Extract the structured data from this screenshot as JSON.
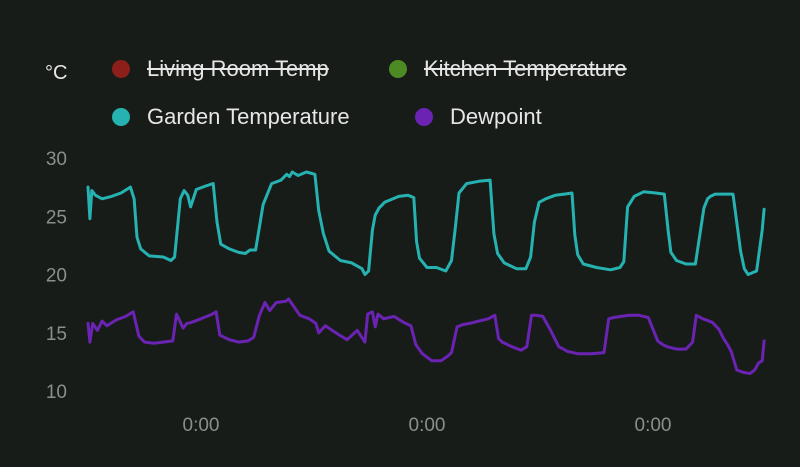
{
  "unit_label": "°C",
  "legend": [
    {
      "name": "Living Room Temp",
      "color": "#8c1f1a",
      "hidden": true
    },
    {
      "name": "Kitchen Temperature",
      "color": "#4c8a23",
      "hidden": true
    },
    {
      "name": "Garden Temperature",
      "color": "#26b2b0",
      "hidden": false
    },
    {
      "name": "Dewpoint",
      "color": "#6a23b2",
      "hidden": false
    }
  ],
  "chart_data": {
    "type": "line",
    "ylabel": "°C",
    "ylim": [
      10,
      30
    ],
    "yticks": [
      10,
      15,
      20,
      25,
      30
    ],
    "xlim": [
      0,
      72
    ],
    "xticks": [
      {
        "x": 12,
        "label": "0:00"
      },
      {
        "x": 36,
        "label": "0:00"
      },
      {
        "x": 60,
        "label": "0:00"
      }
    ],
    "grid": false,
    "series": [
      {
        "name": "Garden Temperature",
        "color": "#26b2b0",
        "x": [
          0,
          0.2,
          0.4,
          0.8,
          1.5,
          2.5,
          3.5,
          4.5,
          4.9,
          5.2,
          5.6,
          6.5,
          8,
          8.8,
          9.2,
          9.8,
          10.2,
          10.6,
          10.9,
          11.5,
          12.5,
          13.3,
          13.7,
          14.1,
          15,
          16,
          16.7,
          17.2,
          17.8,
          18.6,
          19.5,
          20.5,
          21.1,
          21.4,
          21.7,
          22.3,
          23.2,
          24.1,
          24.5,
          25,
          25.6,
          26.8,
          28,
          29.1,
          29.4,
          29.8,
          30.2,
          30.5,
          30.9,
          31.5,
          33,
          34,
          34.6,
          34.9,
          35.2,
          36,
          37,
          38,
          38.6,
          39,
          39.4,
          40.2,
          41.5,
          42.7,
          43.1,
          43.5,
          44.2,
          45.5,
          46.5,
          47,
          47.4,
          47.9,
          48.6,
          49.6,
          50.6,
          51.4,
          51.7,
          52,
          52.6,
          54,
          55.5,
          56.5,
          56.9,
          57.3,
          58,
          59,
          60.3,
          61.2,
          61.6,
          61.9,
          62.5,
          63.5,
          64.5,
          65.4,
          65.8,
          66.1,
          66.6,
          67.5,
          68.5,
          69.3,
          69.7,
          70.1
        ],
        "values": [
          27.5,
          24.8,
          27.2,
          26.8,
          26.5,
          26.7,
          27,
          27.5,
          26.5,
          23.2,
          22.2,
          21.6,
          21.5,
          21.2,
          21.5,
          26.5,
          27.2,
          26.8,
          25.8,
          27.3,
          27.6,
          27.8,
          24.5,
          22.6,
          22.2,
          21.9,
          21.8,
          22.1,
          22.1,
          26,
          27.8,
          28.1,
          28.6,
          28.4,
          28.8,
          28.5,
          28.8,
          28.6,
          25.5,
          23.5,
          22,
          21.2,
          21,
          20.5,
          20,
          20.3,
          23.8,
          25.1,
          25.7,
          26.2,
          26.7,
          26.8,
          26.6,
          22.8,
          21.4,
          20.6,
          20.6,
          20.3,
          21.2,
          24,
          27,
          27.8,
          28,
          28.1,
          23.5,
          21.8,
          21,
          20.5,
          20.5,
          21.5,
          24.5,
          26.2,
          26.5,
          26.8,
          26.9,
          27,
          23.4,
          21.7,
          20.9,
          20.6,
          20.4,
          20.6,
          21.1,
          25.8,
          26.7,
          27.1,
          27,
          26.9,
          23.8,
          21.9,
          21.2,
          20.9,
          20.9,
          25.7,
          26.5,
          26.7,
          26.9,
          26.9,
          26.9,
          22,
          20.5,
          20
        ],
        "x_tail": [
          71,
          71.6,
          71.8
        ],
        "values_tail": [
          20.3,
          23.8,
          25.6
        ]
      },
      {
        "name": "Dewpoint",
        "color": "#6a23b2",
        "x": [
          0,
          0.2,
          0.5,
          1,
          1.5,
          2,
          3,
          4,
          4.8,
          5.4,
          6,
          7,
          8,
          9,
          9.4,
          9.7,
          10.1,
          10.5,
          11,
          12,
          13.2,
          13.6,
          14,
          15,
          16,
          17,
          17.6,
          18.2,
          18.8,
          19.3,
          20,
          21,
          21.3,
          22.5,
          23.5,
          24.2,
          24.5,
          25.2,
          26.5,
          27.5,
          28.6,
          29.4,
          29.7,
          30.2,
          30.5,
          30.8,
          31.4,
          32.5,
          33.5,
          34.3,
          34.8,
          35.5,
          36.5,
          37.5,
          38.2,
          38.6,
          39.2,
          39.8,
          40.5,
          41.5,
          42.5,
          43.2,
          43.6,
          44,
          45,
          46,
          46.6,
          47.1,
          47.6,
          48.3,
          49,
          50,
          50.5,
          50.9,
          52,
          53.5,
          54.8,
          55.3,
          55.8,
          56.6,
          57.5,
          58.5,
          59.5,
          60.5,
          61,
          61.5,
          62.5,
          63.5,
          64.2,
          64.6,
          65.3,
          66.3,
          67,
          67.5,
          67.9,
          68.3,
          68.9,
          69.6,
          70.3,
          70.8,
          71.2,
          71.6,
          71.8
        ],
        "values": [
          15.8,
          14.2,
          15.8,
          15.2,
          16,
          15.6,
          16.1,
          16.4,
          16.8,
          14.7,
          14.2,
          14.1,
          14.2,
          14.3,
          16.6,
          16.1,
          15.4,
          15.8,
          15.9,
          16.2,
          16.6,
          16.8,
          14.8,
          14.4,
          14.2,
          14.3,
          14.6,
          16.5,
          17.6,
          16.9,
          17.6,
          17.7,
          17.9,
          16.5,
          16.2,
          15.8,
          15,
          15.6,
          14.9,
          14.4,
          15.2,
          14.2,
          16.6,
          16.8,
          15.5,
          16.6,
          16.2,
          16.4,
          15.9,
          15.6,
          14,
          13.2,
          12.6,
          12.6,
          13,
          13.3,
          15.5,
          15.7,
          15.8,
          16,
          16.2,
          16.5,
          14.5,
          14.2,
          13.8,
          13.5,
          13.8,
          16.5,
          16.5,
          16.4,
          15.4,
          13.8,
          13.6,
          13.4,
          13.2,
          13.2,
          13.3,
          16.2,
          16.3,
          16.4,
          16.5,
          16.5,
          16.3,
          14.3,
          14,
          13.8,
          13.6,
          13.6,
          14.2,
          16.5,
          16.2,
          15.9,
          15.3,
          14.5,
          14,
          13.4,
          11.8,
          11.6,
          11.5,
          11.8,
          12.4,
          12.6,
          14.3
        ]
      }
    ]
  }
}
